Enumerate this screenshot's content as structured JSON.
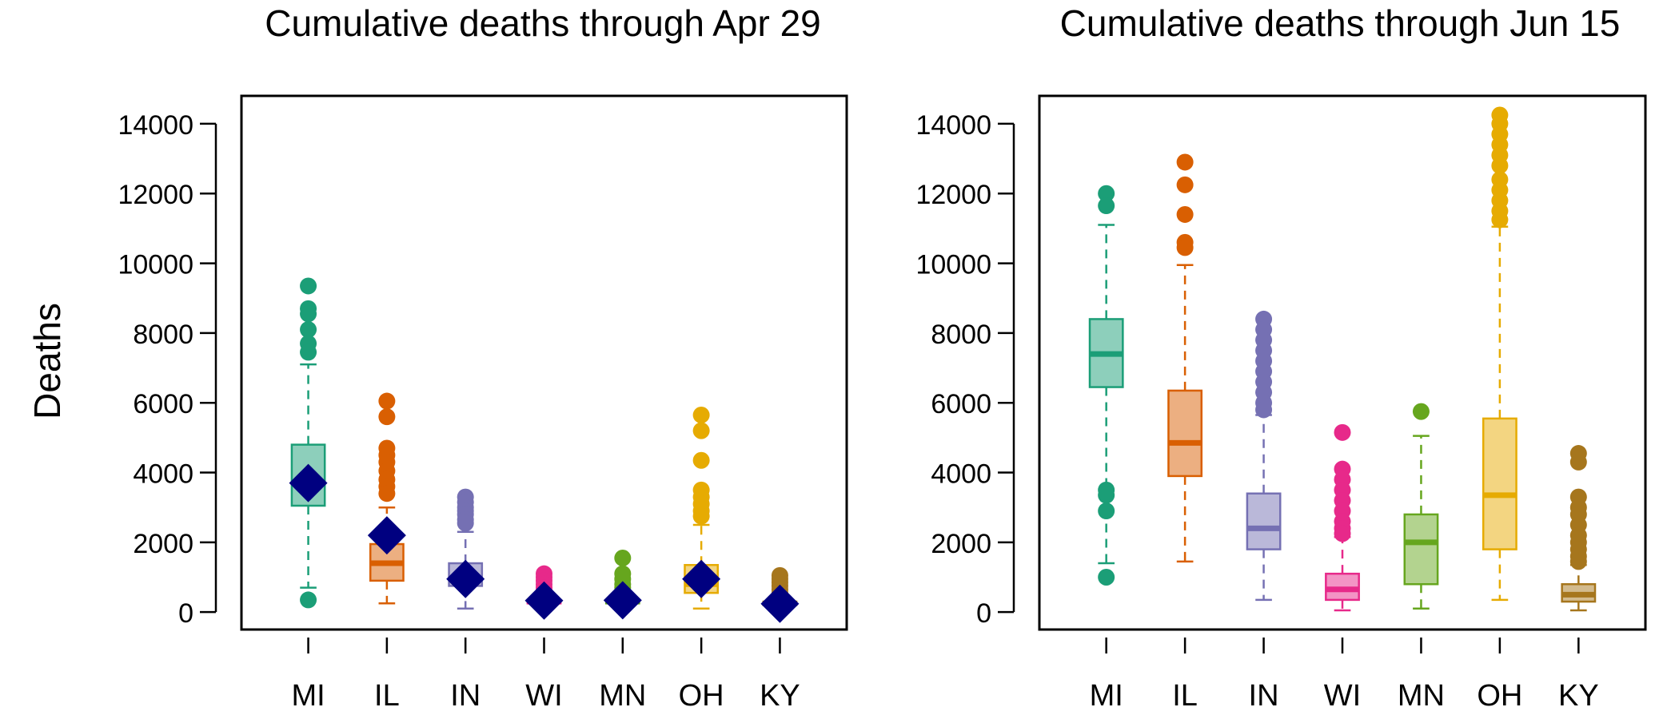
{
  "figure": {
    "ylabel": "Deaths"
  },
  "colors": {
    "MI": "#1b9e77",
    "IL": "#d95f02",
    "IN": "#7570b3",
    "WI": "#e7298a",
    "MN": "#66a61e",
    "OH": "#e6ab02",
    "KY": "#a6761d",
    "diamond": "#000080"
  },
  "chart_data": [
    {
      "type": "boxplot",
      "title": "Cumulative deaths through Apr 29",
      "ylabel": "Deaths",
      "ylim": [
        -500,
        14800
      ],
      "yticks": [
        0,
        2000,
        4000,
        6000,
        8000,
        10000,
        12000,
        14000
      ],
      "categories": [
        "MI",
        "IL",
        "IN",
        "WI",
        "MN",
        "OH",
        "KY"
      ],
      "boxes": [
        {
          "category": "MI",
          "whisker_low": 700,
          "q1": 3050,
          "median": 3700,
          "q3": 4800,
          "whisker_high": 7100,
          "outliers": [
            9350,
            8700,
            8550,
            8100,
            7700,
            7450,
            350
          ]
        },
        {
          "category": "IL",
          "whisker_low": 250,
          "q1": 900,
          "median": 1400,
          "q3": 1950,
          "whisker_high": 3000,
          "outliers": [
            6050,
            5600,
            4700,
            4500,
            4300,
            4050,
            3800,
            3600,
            3400
          ]
        },
        {
          "category": "IN",
          "whisker_low": 100,
          "q1": 750,
          "median": 950,
          "q3": 1400,
          "whisker_high": 2300,
          "outliers": [
            3300,
            3150,
            3000,
            2900,
            2800,
            2650,
            2550
          ]
        },
        {
          "category": "WI",
          "whisker_low": 200,
          "q1": 250,
          "median": 300,
          "q3": 350,
          "whisker_high": 500,
          "outliers": [
            1100,
            1000,
            900,
            800,
            700,
            600
          ]
        },
        {
          "category": "MN",
          "whisker_low": 150,
          "q1": 250,
          "median": 300,
          "q3": 350,
          "whisker_high": 550,
          "outliers": [
            1550,
            1100,
            950,
            800,
            700,
            600
          ]
        },
        {
          "category": "OH",
          "whisker_low": 100,
          "q1": 550,
          "median": 800,
          "q3": 1350,
          "whisker_high": 2500,
          "outliers": [
            5650,
            5200,
            4350,
            3500,
            3300,
            3100,
            2900,
            2750
          ]
        },
        {
          "category": "KY",
          "whisker_low": 150,
          "q1": 200,
          "median": 250,
          "q3": 300,
          "whisker_high": 450,
          "outliers": [
            1050,
            950,
            850,
            750,
            650,
            550
          ]
        }
      ],
      "observed": [
        {
          "category": "MI",
          "value": 3700
        },
        {
          "category": "IL",
          "value": 2200
        },
        {
          "category": "IN",
          "value": 950
        },
        {
          "category": "WI",
          "value": 330
        },
        {
          "category": "MN",
          "value": 340
        },
        {
          "category": "OH",
          "value": 950
        },
        {
          "category": "KY",
          "value": 240
        }
      ]
    },
    {
      "type": "boxplot",
      "title": "Cumulative deaths through Jun 15",
      "ylabel": "",
      "ylim": [
        -500,
        14800
      ],
      "yticks": [
        0,
        2000,
        4000,
        6000,
        8000,
        10000,
        12000,
        14000
      ],
      "categories": [
        "MI",
        "IL",
        "IN",
        "WI",
        "MN",
        "OH",
        "KY"
      ],
      "boxes": [
        {
          "category": "MI",
          "whisker_low": 1400,
          "q1": 6450,
          "median": 7400,
          "q3": 8400,
          "whisker_high": 11100,
          "outliers": [
            12000,
            11650,
            3500,
            3350,
            2900,
            1000
          ]
        },
        {
          "category": "IL",
          "whisker_low": 1450,
          "q1": 3900,
          "median": 4850,
          "q3": 6350,
          "whisker_high": 9950,
          "outliers": [
            12900,
            12250,
            11400,
            10600,
            10450
          ]
        },
        {
          "category": "IN",
          "whisker_low": 350,
          "q1": 1800,
          "median": 2400,
          "q3": 3400,
          "whisker_high": 5650,
          "outliers": [
            8400,
            8100,
            7800,
            7500,
            7200,
            6900,
            6600,
            6300,
            6000,
            5800
          ]
        },
        {
          "category": "WI",
          "whisker_low": 50,
          "q1": 350,
          "median": 650,
          "q3": 1100,
          "whisker_high": 2150,
          "outliers": [
            5150,
            4100,
            3800,
            3500,
            3200,
            2900,
            2600,
            2400,
            2250
          ]
        },
        {
          "category": "MN",
          "whisker_low": 100,
          "q1": 800,
          "median": 2000,
          "q3": 2800,
          "whisker_high": 5050,
          "outliers": [
            5750
          ]
        },
        {
          "category": "OH",
          "whisker_low": 350,
          "q1": 1800,
          "median": 3350,
          "q3": 5550,
          "whisker_high": 11050,
          "outliers": [
            14250,
            14000,
            13700,
            13400,
            13100,
            12800,
            12400,
            12100,
            11800,
            11500,
            11250
          ]
        },
        {
          "category": "KY",
          "whisker_low": 50,
          "q1": 300,
          "median": 500,
          "q3": 800,
          "whisker_high": 1350,
          "outliers": [
            4550,
            4300,
            3300,
            3000,
            2800,
            2500,
            2200,
            2000,
            1800,
            1600,
            1450
          ]
        }
      ]
    }
  ]
}
